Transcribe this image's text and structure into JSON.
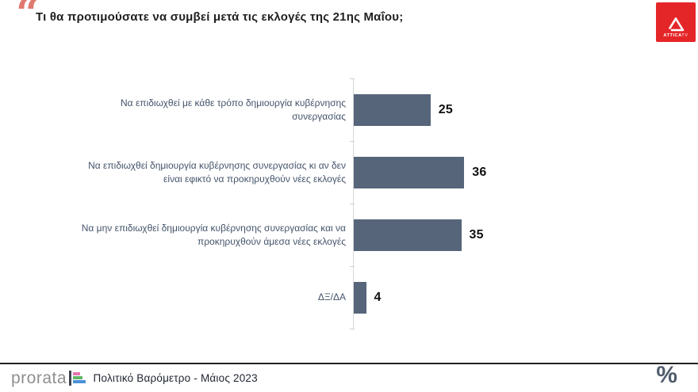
{
  "header": {
    "quote_glyph": "“",
    "title": "Τι θα προτιμούσατε να συμβεί μετά τις εκλογές της 21ης Μαΐου;",
    "attica_logo": {
      "text_main": "ATTICA",
      "text_sub": "TV",
      "bg_color": "#e52629"
    }
  },
  "chart_data": {
    "type": "bar",
    "orientation": "horizontal",
    "title": "Τι θα προτιμούσατε να συμβεί μετά τις εκλογές της 21ης Μαΐου;",
    "categories": [
      "Να επιδιωχθεί με κάθε τρόπο δημιουργία κυβέρνησης συνεργασίας",
      "Να επιδιωχθεί δημιουργία κυβέρνησης συνεργασίας κι αν δεν είναι εφικτό να προκηρυχθούν νέες εκλογές",
      "Να μην επιδιωχθεί δημιουργία κυβέρνησης συνεργασίας και να προκηρυχθούν άμεσα νέες εκλογές",
      "ΔΞ/ΔΑ"
    ],
    "values": [
      25,
      36,
      35,
      4
    ],
    "bar_color": "#56657a",
    "value_label_color": "#111111",
    "category_label_color": "#44546a",
    "xlim": [
      0,
      40
    ],
    "grid": false,
    "legend": false,
    "value_labels_shown": true
  },
  "footer": {
    "brand": "prorata",
    "brand_mark_colors": [
      "#e874ae",
      "#62b567",
      "#4a90d9"
    ],
    "caption": "Πολιτικό Βαρόμετρο - Μάιος 2023",
    "percent_glyph": "%"
  }
}
